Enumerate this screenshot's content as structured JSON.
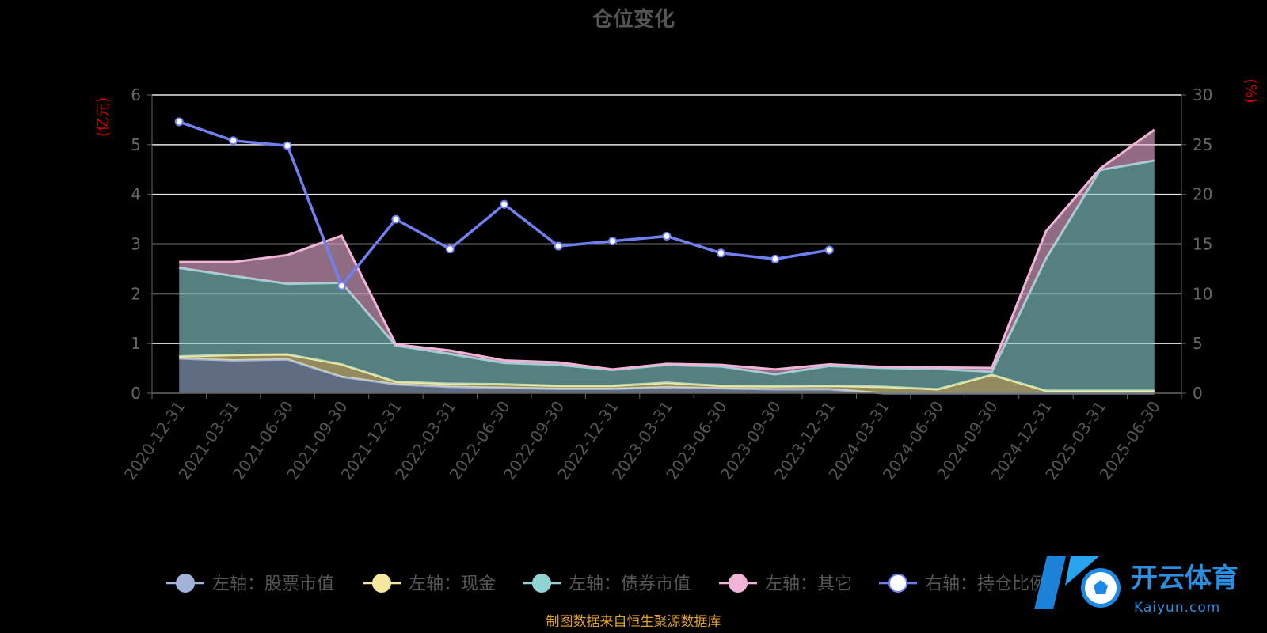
{
  "chart_data": {
    "type": "area",
    "title": "仓位变化",
    "left_unit": "(亿元)",
    "right_unit": "(%)",
    "categories": [
      "2020-12-31",
      "2021-03-31",
      "2021-06-30",
      "2021-09-30",
      "2021-12-31",
      "2022-03-31",
      "2022-06-30",
      "2022-09-30",
      "2022-12-31",
      "2023-03-31",
      "2023-06-30",
      "2023-09-30",
      "2023-12-31",
      "2024-03-31",
      "2024-06-30",
      "2024-09-30",
      "2024-12-31",
      "2025-03-31",
      "2025-06-30"
    ],
    "left_axis": {
      "min": 0,
      "max": 6,
      "ticks": [
        0,
        1,
        2,
        3,
        4,
        5,
        6
      ]
    },
    "right_axis": {
      "min": 0,
      "max": 30,
      "ticks": [
        0,
        5,
        10,
        15,
        20,
        25,
        30
      ]
    },
    "grid": true,
    "legend_position": "bottom",
    "series": [
      {
        "name": "左轴：股票市值",
        "axis": "left",
        "stacked": true,
        "color": "#9fb4d8",
        "values": [
          0.7,
          0.66,
          0.68,
          0.33,
          0.18,
          0.13,
          0.11,
          0.09,
          0.09,
          0.12,
          0.1,
          0.08,
          0.08,
          0,
          0,
          0,
          0,
          0,
          0
        ]
      },
      {
        "name": "左轴：现金",
        "axis": "left",
        "stacked": true,
        "color": "#f5e79e",
        "values": [
          0.04,
          0.11,
          0.1,
          0.25,
          0.05,
          0.06,
          0.07,
          0.06,
          0.06,
          0.09,
          0.05,
          0.06,
          0.07,
          0.13,
          0.08,
          0.37,
          0.05,
          0.05,
          0.05
        ]
      },
      {
        "name": "左轴：债券市值",
        "axis": "left",
        "stacked": true,
        "color": "#8fd3d3",
        "values": [
          1.78,
          1.59,
          1.42,
          1.64,
          0.73,
          0.6,
          0.43,
          0.42,
          0.32,
          0.36,
          0.39,
          0.24,
          0.4,
          0.38,
          0.41,
          0.06,
          2.66,
          4.44,
          4.63
        ]
      },
      {
        "name": "左轴：其它",
        "axis": "left",
        "stacked": true,
        "color": "#f0b4d8",
        "values": [
          0.12,
          0.28,
          0.58,
          0.95,
          0.02,
          0.07,
          0.05,
          0.05,
          0.01,
          0.02,
          0.03,
          0.1,
          0.03,
          0.02,
          0.03,
          0.08,
          0.55,
          0.03,
          0.62
        ]
      },
      {
        "name": "右轴：持仓比例",
        "axis": "right",
        "stacked": false,
        "color": "#7080f0",
        "values": [
          27.3,
          25.4,
          24.9,
          10.8,
          17.5,
          14.5,
          19.0,
          14.8,
          15.3,
          15.8,
          14.1,
          13.5,
          14.4,
          null,
          null,
          null,
          null,
          null,
          null
        ]
      }
    ],
    "footnote": "制图数据来自恒生聚源数据库"
  },
  "watermark": {
    "text": "开云体育",
    "subtext": "Kaiyun.com"
  }
}
